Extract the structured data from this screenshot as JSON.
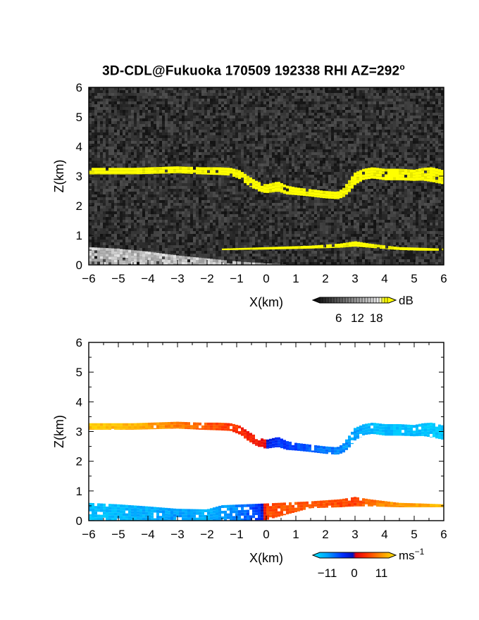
{
  "chart_data": [
    {
      "type": "heatmap",
      "title": "3D-CDL@Fukuoka 170509 192338 RHI AZ=292",
      "title_superscript": "o",
      "xlabel": "X(km)",
      "ylabel": "Z(km)",
      "xlim": [
        -6,
        6
      ],
      "ylim": [
        0,
        6
      ],
      "x_ticks": [
        "-6",
        "-5",
        "-4",
        "-3",
        "-2",
        "-1",
        "0",
        "1",
        "2",
        "3",
        "4",
        "5",
        "6"
      ],
      "y_ticks": [
        "0",
        "1",
        "2",
        "3",
        "4",
        "5",
        "6"
      ],
      "colorbar": {
        "unit": "dB",
        "ticks": [
          "6",
          "12",
          "18"
        ],
        "range": [
          0,
          22
        ],
        "colormap": "grayscale-to-yellow"
      },
      "background_noise_db": 3,
      "layers": [
        {
          "name": "upper cloud layer",
          "value_db": 20,
          "color": "#ffff00",
          "top_km": [
            [
              -6,
              3.28
            ],
            [
              -4.5,
              3.28
            ],
            [
              -3,
              3.33
            ],
            [
              -2.2,
              3.3
            ],
            [
              -1.6,
              3.3
            ],
            [
              -1.2,
              3.28
            ],
            [
              -0.9,
              3.2
            ],
            [
              -0.6,
              3.0
            ],
            [
              -0.3,
              2.82
            ],
            [
              0,
              2.72
            ],
            [
              0.4,
              2.82
            ],
            [
              0.7,
              2.68
            ],
            [
              1.0,
              2.62
            ],
            [
              1.5,
              2.56
            ],
            [
              2.0,
              2.5
            ],
            [
              2.4,
              2.47
            ],
            [
              2.6,
              2.58
            ],
            [
              2.8,
              2.85
            ],
            [
              3.0,
              3.12
            ],
            [
              3.3,
              3.25
            ],
            [
              3.6,
              3.3
            ],
            [
              4.0,
              3.25
            ],
            [
              4.5,
              3.25
            ],
            [
              5.0,
              3.22
            ],
            [
              5.3,
              3.28
            ],
            [
              5.6,
              3.3
            ],
            [
              6,
              3.2
            ]
          ],
          "bottom_km": [
            [
              -6,
              3.06
            ],
            [
              -4.5,
              3.06
            ],
            [
              -3,
              3.1
            ],
            [
              -2.2,
              3.06
            ],
            [
              -1.6,
              3.04
            ],
            [
              -1.2,
              3.02
            ],
            [
              -0.9,
              2.9
            ],
            [
              -0.6,
              2.68
            ],
            [
              -0.3,
              2.5
            ],
            [
              0,
              2.42
            ],
            [
              0.4,
              2.48
            ],
            [
              0.7,
              2.38
            ],
            [
              1.0,
              2.36
            ],
            [
              1.5,
              2.31
            ],
            [
              2.0,
              2.25
            ],
            [
              2.4,
              2.22
            ],
            [
              2.6,
              2.28
            ],
            [
              2.8,
              2.45
            ],
            [
              3.0,
              2.7
            ],
            [
              3.3,
              2.88
            ],
            [
              3.6,
              2.92
            ],
            [
              4.0,
              2.86
            ],
            [
              4.5,
              2.86
            ],
            [
              5.0,
              2.84
            ],
            [
              5.3,
              2.85
            ],
            [
              5.6,
              2.8
            ],
            [
              6,
              2.72
            ]
          ]
        },
        {
          "name": "lower layer",
          "value_db": 20,
          "color": "#ffff00",
          "top_km": [
            [
              -1.5,
              0.55
            ],
            [
              0,
              0.6
            ],
            [
              1.5,
              0.65
            ],
            [
              2.5,
              0.72
            ],
            [
              3.0,
              0.8
            ],
            [
              3.5,
              0.72
            ],
            [
              4.5,
              0.6
            ],
            [
              5.2,
              0.58
            ],
            [
              6,
              0.55
            ]
          ],
          "bottom_km": [
            [
              -1.5,
              0.5
            ],
            [
              0,
              0.52
            ],
            [
              1.5,
              0.55
            ],
            [
              2.5,
              0.58
            ],
            [
              3.0,
              0.62
            ],
            [
              3.5,
              0.58
            ],
            [
              4.5,
              0.5
            ],
            [
              5.2,
              0.48
            ],
            [
              6,
              0.48
            ]
          ]
        },
        {
          "name": "near-surface echo",
          "value_db": 10,
          "color": "#bcbcbc",
          "top_km": [
            [
              -6,
              0.6
            ],
            [
              -5,
              0.55
            ],
            [
              -4,
              0.45
            ],
            [
              -3,
              0.32
            ],
            [
              -2,
              0.22
            ],
            [
              -1,
              0.12
            ],
            [
              0,
              0.05
            ],
            [
              0.6,
              0.02
            ]
          ],
          "bottom_km": [
            [
              -6,
              0.0
            ],
            [
              -5,
              0.0
            ],
            [
              -4,
              0.0
            ],
            [
              -3,
              0.0
            ],
            [
              -2,
              0.0
            ],
            [
              -1,
              0.0
            ],
            [
              0,
              0.0
            ],
            [
              0.6,
              0.0
            ]
          ]
        }
      ]
    },
    {
      "type": "heatmap",
      "title": "",
      "xlabel": "X(km)",
      "ylabel": "Z(km)",
      "xlim": [
        -6,
        6
      ],
      "ylim": [
        0,
        6
      ],
      "x_ticks": [
        "-6",
        "-5",
        "-4",
        "-3",
        "-2",
        "-1",
        "0",
        "1",
        "2",
        "3",
        "4",
        "5",
        "6"
      ],
      "y_ticks": [
        "0",
        "1",
        "2",
        "3",
        "4",
        "5",
        "6"
      ],
      "colorbar": {
        "unit": "ms",
        "unit_superscript": "−1",
        "ticks": [
          "−11",
          "0",
          "11"
        ],
        "range": [
          -14,
          14
        ],
        "colormap": "cyan-blue-red-yellow"
      },
      "color_stops": [
        {
          "v": -14,
          "c": "#00e8ff"
        },
        {
          "v": -9,
          "c": "#00a0ff"
        },
        {
          "v": -4,
          "c": "#0030ff"
        },
        {
          "v": -0.5,
          "c": "#0010c0"
        },
        {
          "v": 0.5,
          "c": "#e00010"
        },
        {
          "v": 4,
          "c": "#ff3000"
        },
        {
          "v": 9,
          "c": "#ff9000"
        },
        {
          "v": 14,
          "c": "#ffe800"
        }
      ],
      "layers": [
        {
          "name": "upper cloud layer velocity",
          "top_km": [
            [
              -6,
              3.28
            ],
            [
              -4.5,
              3.28
            ],
            [
              -3,
              3.33
            ],
            [
              -2.2,
              3.3
            ],
            [
              -1.6,
              3.3
            ],
            [
              -1.2,
              3.28
            ],
            [
              -0.9,
              3.2
            ],
            [
              -0.6,
              3.0
            ],
            [
              -0.3,
              2.82
            ],
            [
              0,
              2.72
            ],
            [
              0.4,
              2.82
            ],
            [
              0.7,
              2.68
            ],
            [
              1.0,
              2.62
            ],
            [
              1.5,
              2.56
            ],
            [
              2.0,
              2.5
            ],
            [
              2.4,
              2.47
            ],
            [
              2.6,
              2.58
            ],
            [
              2.8,
              2.85
            ],
            [
              3.0,
              3.12
            ],
            [
              3.3,
              3.25
            ],
            [
              3.6,
              3.3
            ],
            [
              4.0,
              3.25
            ],
            [
              4.5,
              3.25
            ],
            [
              5.0,
              3.22
            ],
            [
              5.3,
              3.28
            ],
            [
              5.6,
              3.3
            ],
            [
              6,
              3.2
            ]
          ],
          "bottom_km": [
            [
              -6,
              3.06
            ],
            [
              -4.5,
              3.06
            ],
            [
              -3,
              3.1
            ],
            [
              -2.2,
              3.06
            ],
            [
              -1.6,
              3.04
            ],
            [
              -1.2,
              3.02
            ],
            [
              -0.9,
              2.9
            ],
            [
              -0.6,
              2.68
            ],
            [
              -0.3,
              2.5
            ],
            [
              0,
              2.42
            ],
            [
              0.4,
              2.48
            ],
            [
              0.7,
              2.38
            ],
            [
              1.0,
              2.36
            ],
            [
              1.5,
              2.31
            ],
            [
              2.0,
              2.25
            ],
            [
              2.4,
              2.22
            ],
            [
              2.6,
              2.28
            ],
            [
              2.8,
              2.45
            ],
            [
              3.0,
              2.7
            ],
            [
              3.3,
              2.88
            ],
            [
              3.6,
              2.92
            ],
            [
              4.0,
              2.86
            ],
            [
              4.5,
              2.86
            ],
            [
              5.0,
              2.84
            ],
            [
              5.3,
              2.85
            ],
            [
              5.6,
              2.8
            ],
            [
              6,
              2.72
            ]
          ],
          "velocity_ms": [
            [
              -6,
              12
            ],
            [
              -4.5,
              11
            ],
            [
              -3,
              8
            ],
            [
              -2,
              6
            ],
            [
              -1,
              4
            ],
            [
              -0.3,
              2
            ],
            [
              -0.05,
              1.5
            ],
            [
              0.05,
              -2
            ],
            [
              0.5,
              -4
            ],
            [
              1.5,
              -6
            ],
            [
              2.5,
              -8
            ],
            [
              3.5,
              -11
            ],
            [
              5,
              -11
            ],
            [
              6,
              -12
            ]
          ]
        },
        {
          "name": "lower layer velocity",
          "top_km": [
            [
              -6,
              0.6
            ],
            [
              -5,
              0.55
            ],
            [
              -4,
              0.48
            ],
            [
              -3,
              0.4
            ],
            [
              -2,
              0.38
            ],
            [
              -1.5,
              0.52
            ],
            [
              0,
              0.58
            ],
            [
              1.5,
              0.65
            ],
            [
              2.5,
              0.72
            ],
            [
              3.0,
              0.8
            ],
            [
              3.5,
              0.72
            ],
            [
              4.5,
              0.6
            ],
            [
              5.2,
              0.58
            ],
            [
              6,
              0.55
            ]
          ],
          "bottom_km": [
            [
              -6,
              0.0
            ],
            [
              -5,
              0.0
            ],
            [
              -4,
              0.0
            ],
            [
              -3,
              0.0
            ],
            [
              -2,
              0.0
            ],
            [
              -1.5,
              0.0
            ],
            [
              0,
              0.02
            ],
            [
              1.5,
              0.42
            ],
            [
              2.5,
              0.45
            ],
            [
              3.0,
              0.48
            ],
            [
              3.5,
              0.48
            ],
            [
              4.5,
              0.45
            ],
            [
              5.2,
              0.45
            ],
            [
              6,
              0.45
            ]
          ],
          "velocity_ms": [
            [
              -6,
              -11
            ],
            [
              -5,
              -11
            ],
            [
              -4,
              -10
            ],
            [
              -3,
              -9
            ],
            [
              -2,
              -10
            ],
            [
              -1,
              -8
            ],
            [
              -0.2,
              -4
            ],
            [
              0,
              5
            ],
            [
              1,
              6
            ],
            [
              2,
              6
            ],
            [
              3,
              5
            ],
            [
              4,
              9
            ],
            [
              5,
              10
            ],
            [
              6,
              11
            ]
          ]
        }
      ]
    }
  ]
}
